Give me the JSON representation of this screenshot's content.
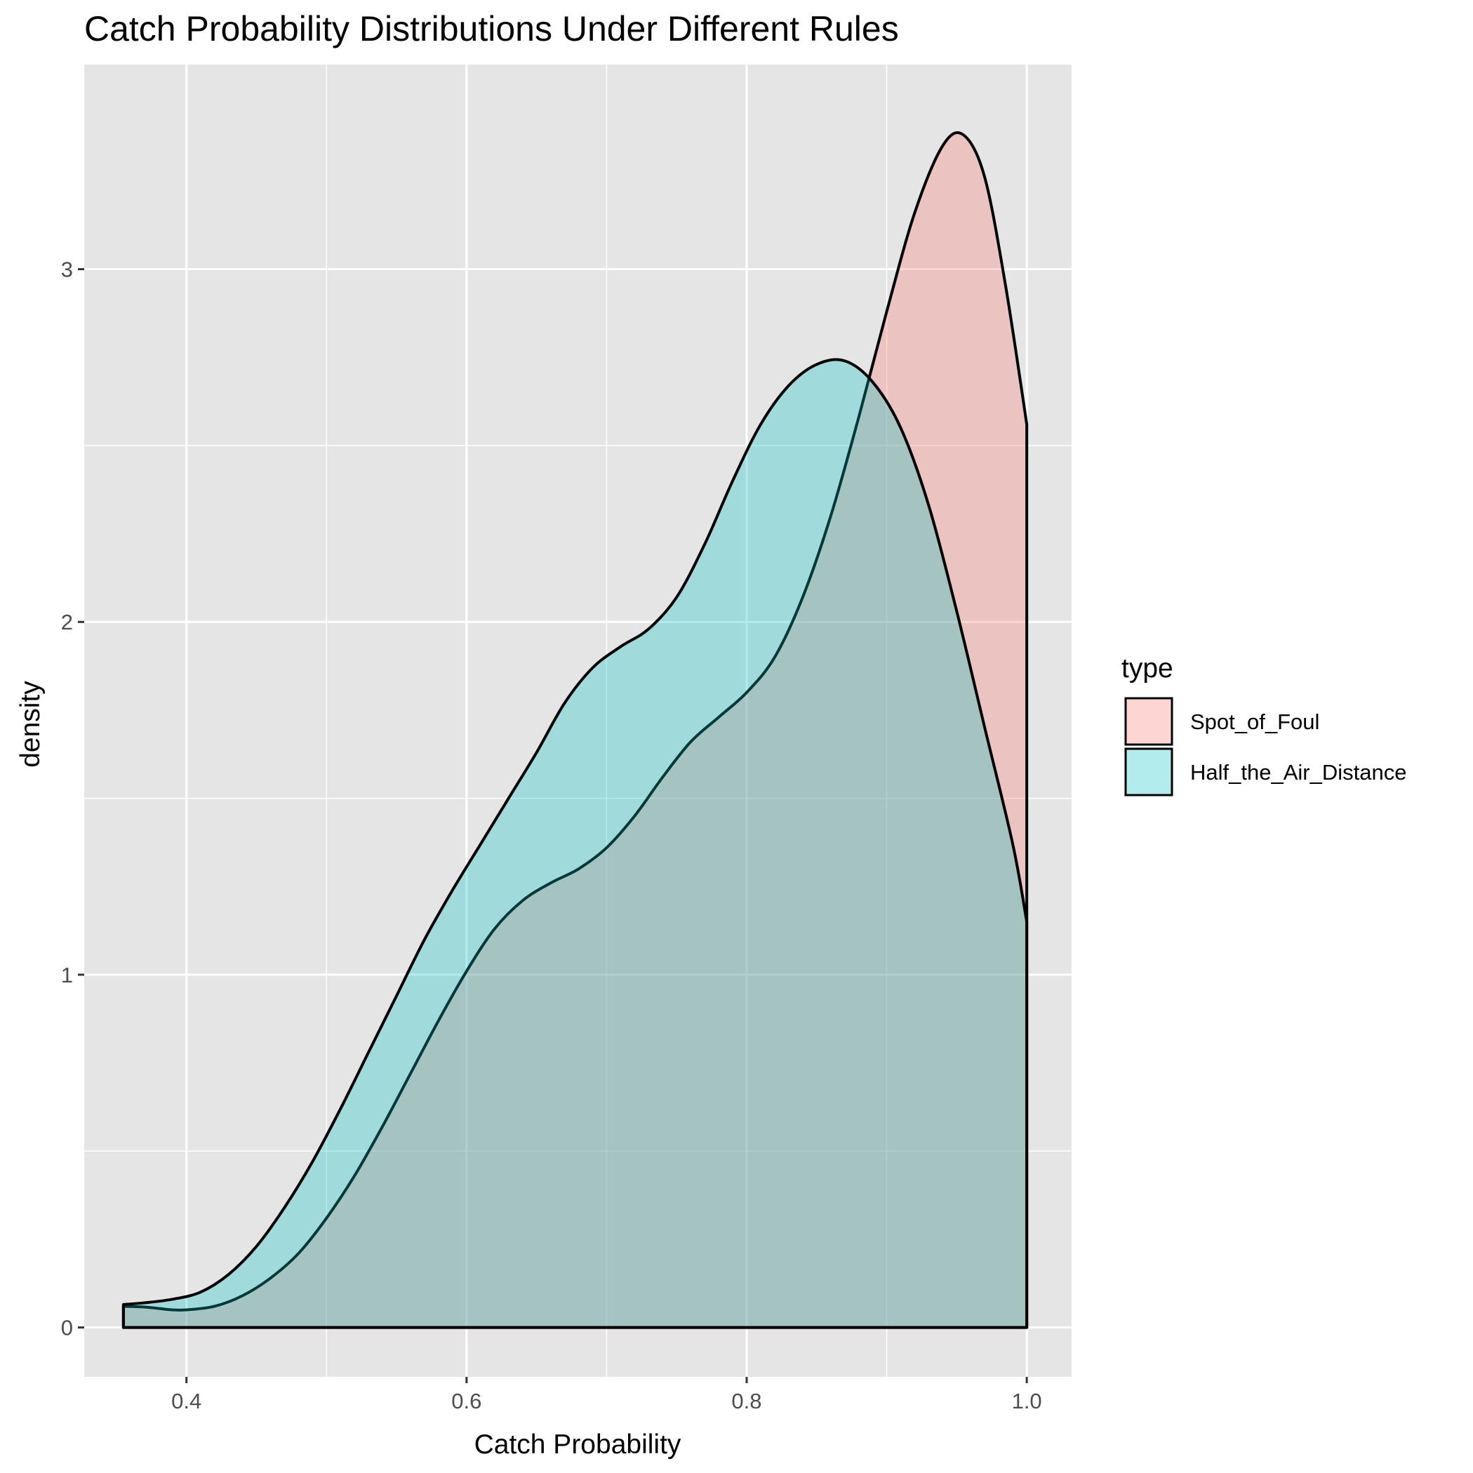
{
  "chart_data": {
    "type": "area",
    "chart_subtype": "density",
    "title": "Catch Probability Distributions Under Different Rules",
    "xlabel": "Catch Probability",
    "ylabel": "density",
    "xlim": [
      0.327,
      1.032
    ],
    "ylim": [
      -0.14,
      3.58
    ],
    "x_ticks": [
      0.4,
      0.6,
      0.8,
      1.0
    ],
    "x_tick_labels": [
      "0.4",
      "0.6",
      "0.8",
      "1.0"
    ],
    "y_ticks": [
      0,
      1,
      2,
      3
    ],
    "y_tick_labels": [
      "0",
      "1",
      "2",
      "3"
    ],
    "x_minor_ticks": [
      0.5,
      0.7,
      0.9
    ],
    "y_minor_ticks": [
      0.5,
      1.5,
      2.5
    ],
    "grid": true,
    "panel_background": "#e5e5e5",
    "legend": {
      "title": "type",
      "position": "right"
    },
    "series": [
      {
        "name": "Spot_of_Foul",
        "color": "#f8766d",
        "fill_opacity": 0.3,
        "points": [
          [
            0.355,
            0.06
          ],
          [
            0.37,
            0.058
          ],
          [
            0.38,
            0.054
          ],
          [
            0.39,
            0.05
          ],
          [
            0.4,
            0.05
          ],
          [
            0.42,
            0.06
          ],
          [
            0.44,
            0.09
          ],
          [
            0.46,
            0.14
          ],
          [
            0.48,
            0.21
          ],
          [
            0.5,
            0.31
          ],
          [
            0.52,
            0.43
          ],
          [
            0.54,
            0.57
          ],
          [
            0.56,
            0.72
          ],
          [
            0.58,
            0.87
          ],
          [
            0.6,
            1.01
          ],
          [
            0.62,
            1.13
          ],
          [
            0.64,
            1.21
          ],
          [
            0.66,
            1.26
          ],
          [
            0.68,
            1.3
          ],
          [
            0.7,
            1.36
          ],
          [
            0.72,
            1.45
          ],
          [
            0.74,
            1.56
          ],
          [
            0.76,
            1.66
          ],
          [
            0.78,
            1.73
          ],
          [
            0.8,
            1.8
          ],
          [
            0.82,
            1.9
          ],
          [
            0.84,
            2.07
          ],
          [
            0.86,
            2.3
          ],
          [
            0.88,
            2.58
          ],
          [
            0.9,
            2.88
          ],
          [
            0.92,
            3.16
          ],
          [
            0.94,
            3.35
          ],
          [
            0.955,
            3.38
          ],
          [
            0.97,
            3.26
          ],
          [
            0.985,
            2.95
          ],
          [
            1.0,
            2.56
          ]
        ]
      },
      {
        "name": "Half_the_Air_Distance",
        "color": "#00bfc4",
        "fill_opacity": 0.3,
        "points": [
          [
            0.355,
            0.065
          ],
          [
            0.37,
            0.07
          ],
          [
            0.39,
            0.08
          ],
          [
            0.41,
            0.1
          ],
          [
            0.43,
            0.15
          ],
          [
            0.45,
            0.23
          ],
          [
            0.47,
            0.34
          ],
          [
            0.49,
            0.47
          ],
          [
            0.51,
            0.62
          ],
          [
            0.53,
            0.78
          ],
          [
            0.55,
            0.94
          ],
          [
            0.57,
            1.1
          ],
          [
            0.59,
            1.24
          ],
          [
            0.61,
            1.37
          ],
          [
            0.63,
            1.5
          ],
          [
            0.65,
            1.63
          ],
          [
            0.67,
            1.77
          ],
          [
            0.69,
            1.87
          ],
          [
            0.71,
            1.93
          ],
          [
            0.73,
            1.98
          ],
          [
            0.75,
            2.07
          ],
          [
            0.77,
            2.22
          ],
          [
            0.79,
            2.4
          ],
          [
            0.81,
            2.56
          ],
          [
            0.83,
            2.67
          ],
          [
            0.85,
            2.73
          ],
          [
            0.87,
            2.74
          ],
          [
            0.89,
            2.68
          ],
          [
            0.91,
            2.55
          ],
          [
            0.93,
            2.33
          ],
          [
            0.95,
            2.03
          ],
          [
            0.97,
            1.7
          ],
          [
            0.99,
            1.37
          ],
          [
            1.0,
            1.15
          ]
        ]
      }
    ]
  }
}
